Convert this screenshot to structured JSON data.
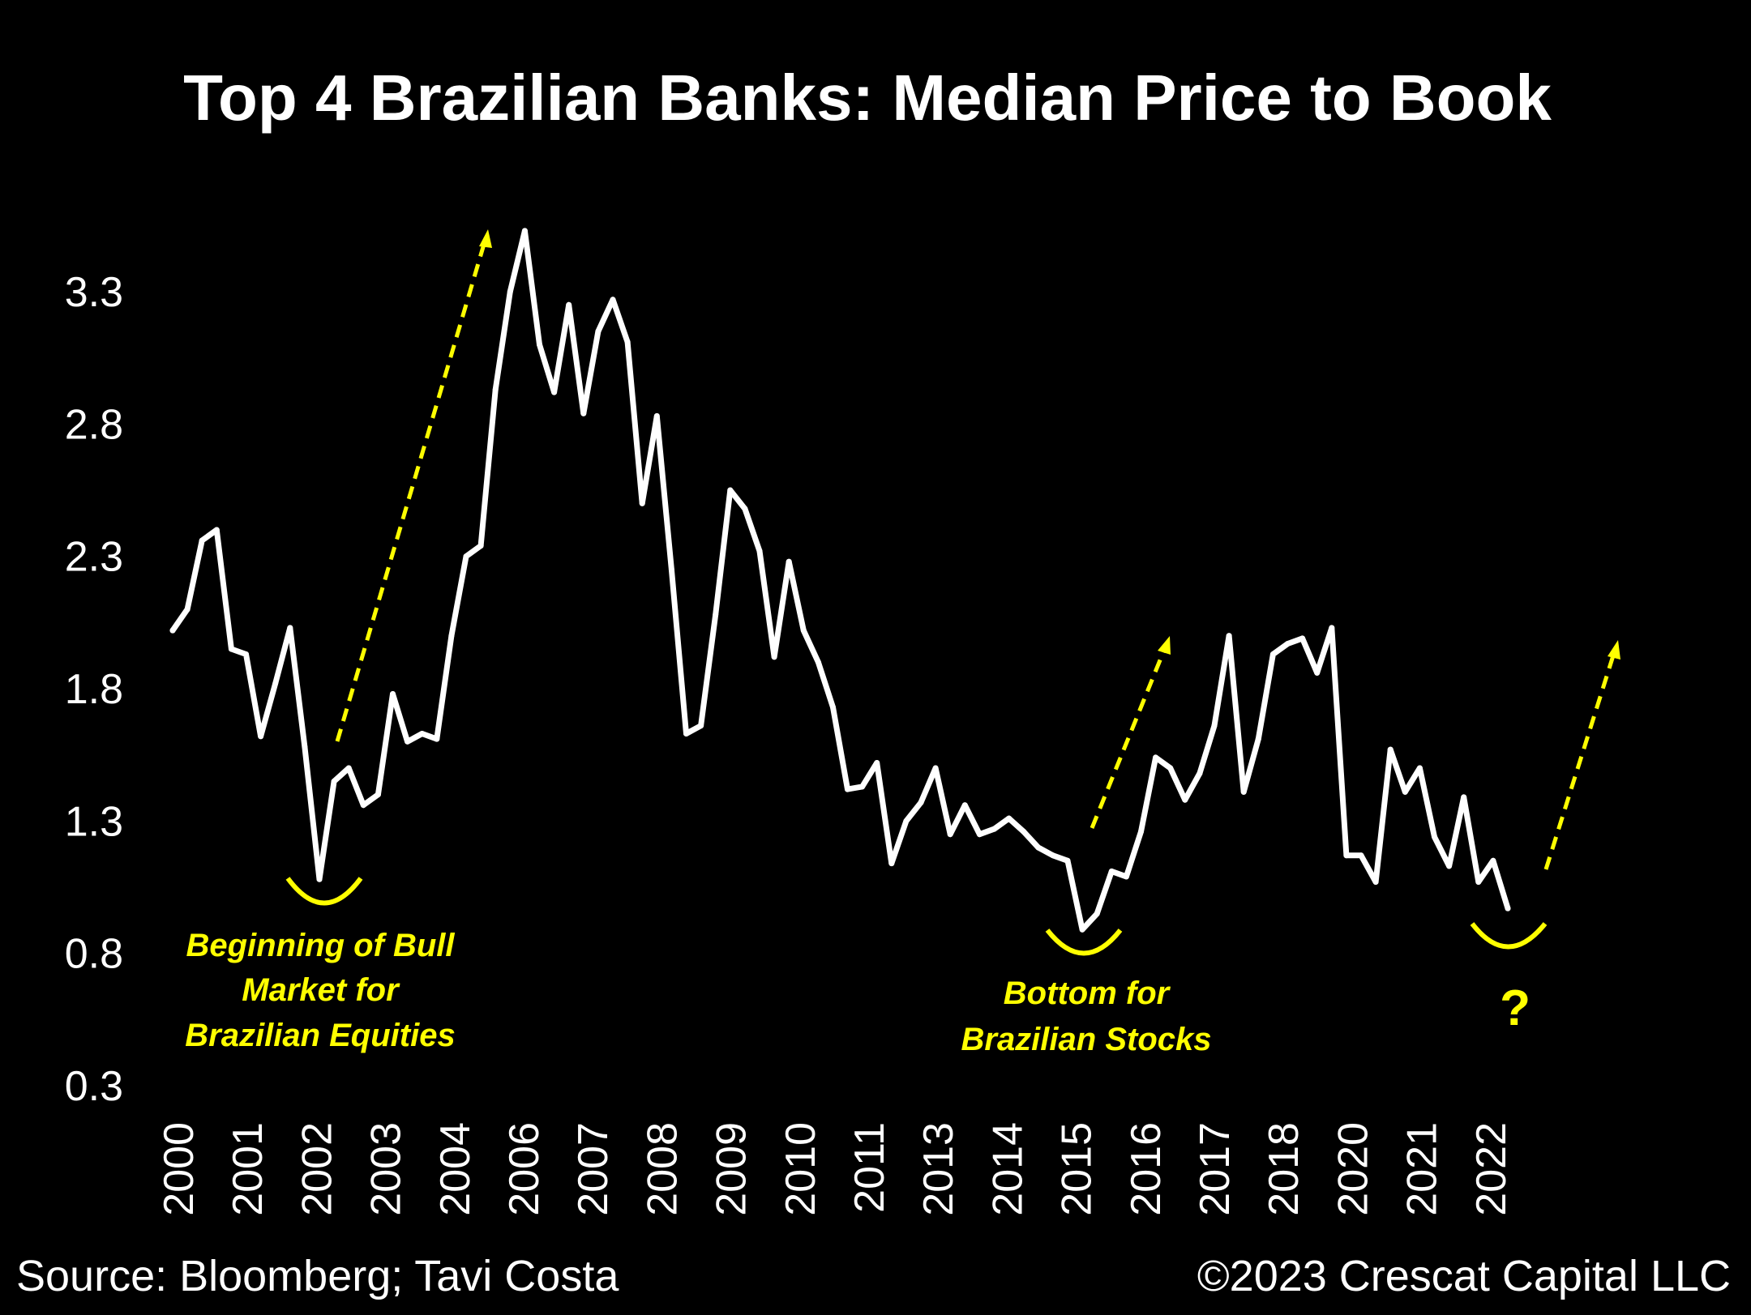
{
  "chart_data": {
    "type": "line",
    "title": "Top 4 Brazilian Banks: Median Price to Book",
    "xlabel": "",
    "ylabel": "",
    "ylim": [
      0.3,
      3.6
    ],
    "y_ticks": [
      "3.3",
      "2.8",
      "2.3",
      "1.8",
      "1.3",
      "0.8",
      "0.3"
    ],
    "x_ticks": [
      "2000",
      "2001",
      "2002",
      "2003",
      "2004",
      "2006",
      "2007",
      "2008",
      "2009",
      "2010",
      "2011",
      "2013",
      "2014",
      "2015",
      "2016",
      "2017",
      "2018",
      "2020",
      "2021",
      "2022"
    ],
    "grid": false,
    "legend": "none",
    "colors": {
      "line": "#ffffff",
      "annotation": "#ffff00",
      "background": "#000000"
    },
    "series": [
      {
        "values": [
          2.02,
          2.1,
          2.36,
          2.4,
          1.95,
          1.93,
          1.62,
          1.82,
          2.03,
          1.58,
          1.08,
          1.45,
          1.5,
          1.36,
          1.4,
          1.78,
          1.6,
          1.63,
          1.61,
          2.0,
          2.3,
          2.34,
          2.93,
          3.3,
          3.53,
          3.1,
          2.92,
          3.25,
          2.84,
          3.15,
          3.27,
          3.11,
          2.5,
          2.83,
          2.25,
          1.63,
          1.66,
          2.08,
          2.55,
          2.48,
          2.32,
          1.92,
          2.28,
          2.02,
          1.9,
          1.73,
          1.42,
          1.43,
          1.52,
          1.14,
          1.3,
          1.37,
          1.5,
          1.25,
          1.36,
          1.25,
          1.27,
          1.31,
          1.26,
          1.2,
          1.17,
          1.15,
          0.89,
          0.95,
          1.11,
          1.09,
          1.26,
          1.54,
          1.5,
          1.38,
          1.48,
          1.66,
          2.0,
          1.41,
          1.61,
          1.93,
          1.97,
          1.99,
          1.86,
          2.03,
          1.17,
          1.17,
          1.07,
          1.57,
          1.41,
          1.5,
          1.24,
          1.13,
          1.39,
          1.07,
          1.15,
          0.97
        ]
      }
    ],
    "annotations": [
      {
        "lines": [
          "Beginning of  Bull",
          "Market for",
          "Brazilian Equities"
        ]
      },
      {
        "lines": [
          "Bottom for",
          "Brazilian Stocks"
        ]
      },
      {
        "text": "?"
      }
    ]
  },
  "footer": {
    "source": "Source: Bloomberg; Tavi Costa",
    "copyright": "©2023 Crescat Capital LLC"
  }
}
